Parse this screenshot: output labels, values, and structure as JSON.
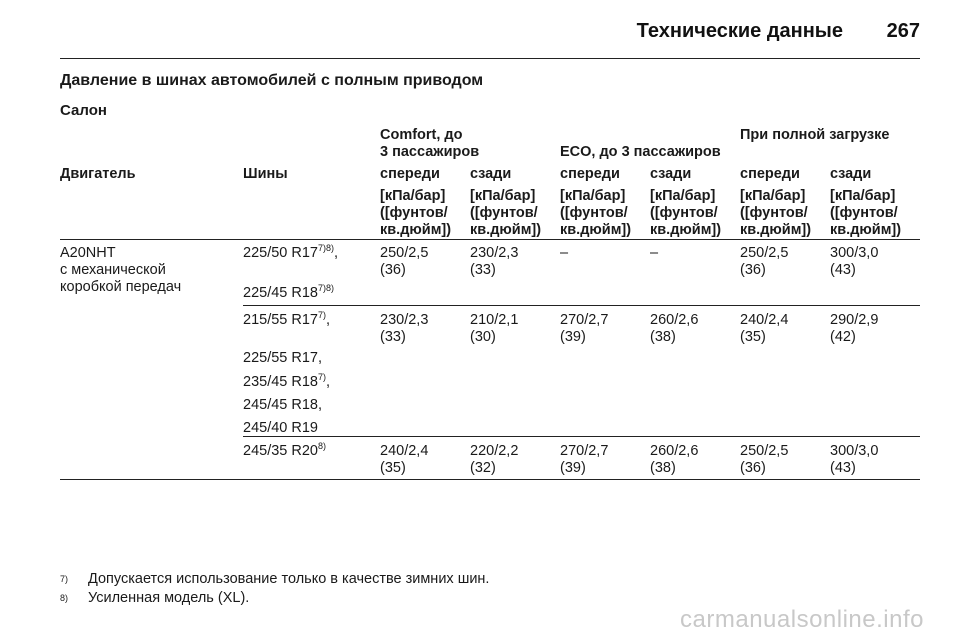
{
  "header": {
    "title": "Технические данные",
    "page_number": "267"
  },
  "section_title": "Давление в шинах автомобилей с полным приводом",
  "subsection": "Салон",
  "table": {
    "group_headers": {
      "comfort": "Comfort, до\n3 пассажиров",
      "eco": "ECO, до 3 пассажиров",
      "full": "При полной загрузке"
    },
    "col_engine": "Двигатель",
    "col_tires": "Шины",
    "front": "спереди",
    "rear": "сзади",
    "unit": "[кПа/бар]\n([фунтов/\nкв.дюйм])",
    "engine": "A20NHT\nс механической\nкоробкой передач",
    "groups": [
      {
        "tires": [
          "225/50 R17",
          "225/45 R18"
        ],
        "tire_sups": [
          "7)8)",
          "7)8)"
        ],
        "tire_suffix": [
          ",",
          ""
        ],
        "values": [
          "250/2,5\n(36)",
          "230/2,3\n(33)",
          "–",
          "–",
          "250/2,5\n(36)",
          "300/3,0\n(43)"
        ]
      },
      {
        "tires": [
          "215/55 R17",
          "225/55 R17,",
          "235/45 R18",
          "245/45 R18,",
          "245/40 R19"
        ],
        "tire_sups": [
          "7)",
          "",
          "7)",
          "",
          ""
        ],
        "tire_suffix": [
          ",",
          "",
          ",",
          "",
          ""
        ],
        "values": [
          "230/2,3\n(33)",
          "210/2,1\n(30)",
          "270/2,7\n(39)",
          "260/2,6\n(38)",
          "240/2,4\n(35)",
          "290/2,9\n(42)"
        ]
      },
      {
        "tires": [
          "245/35 R20"
        ],
        "tire_sups": [
          "8)"
        ],
        "tire_suffix": [
          ""
        ],
        "values": [
          "240/2,4\n(35)",
          "220/2,2\n(32)",
          "270/2,7\n(39)",
          "260/2,6\n(38)",
          "250/2,5\n(36)",
          "300/3,0\n(43)"
        ]
      }
    ]
  },
  "footnotes": [
    {
      "mark": "7)",
      "text": "Допускается использование только в качестве зимних шин."
    },
    {
      "mark": "8)",
      "text": "Усиленная модель (XL)."
    }
  ],
  "watermark": "carmanualsonline.info"
}
